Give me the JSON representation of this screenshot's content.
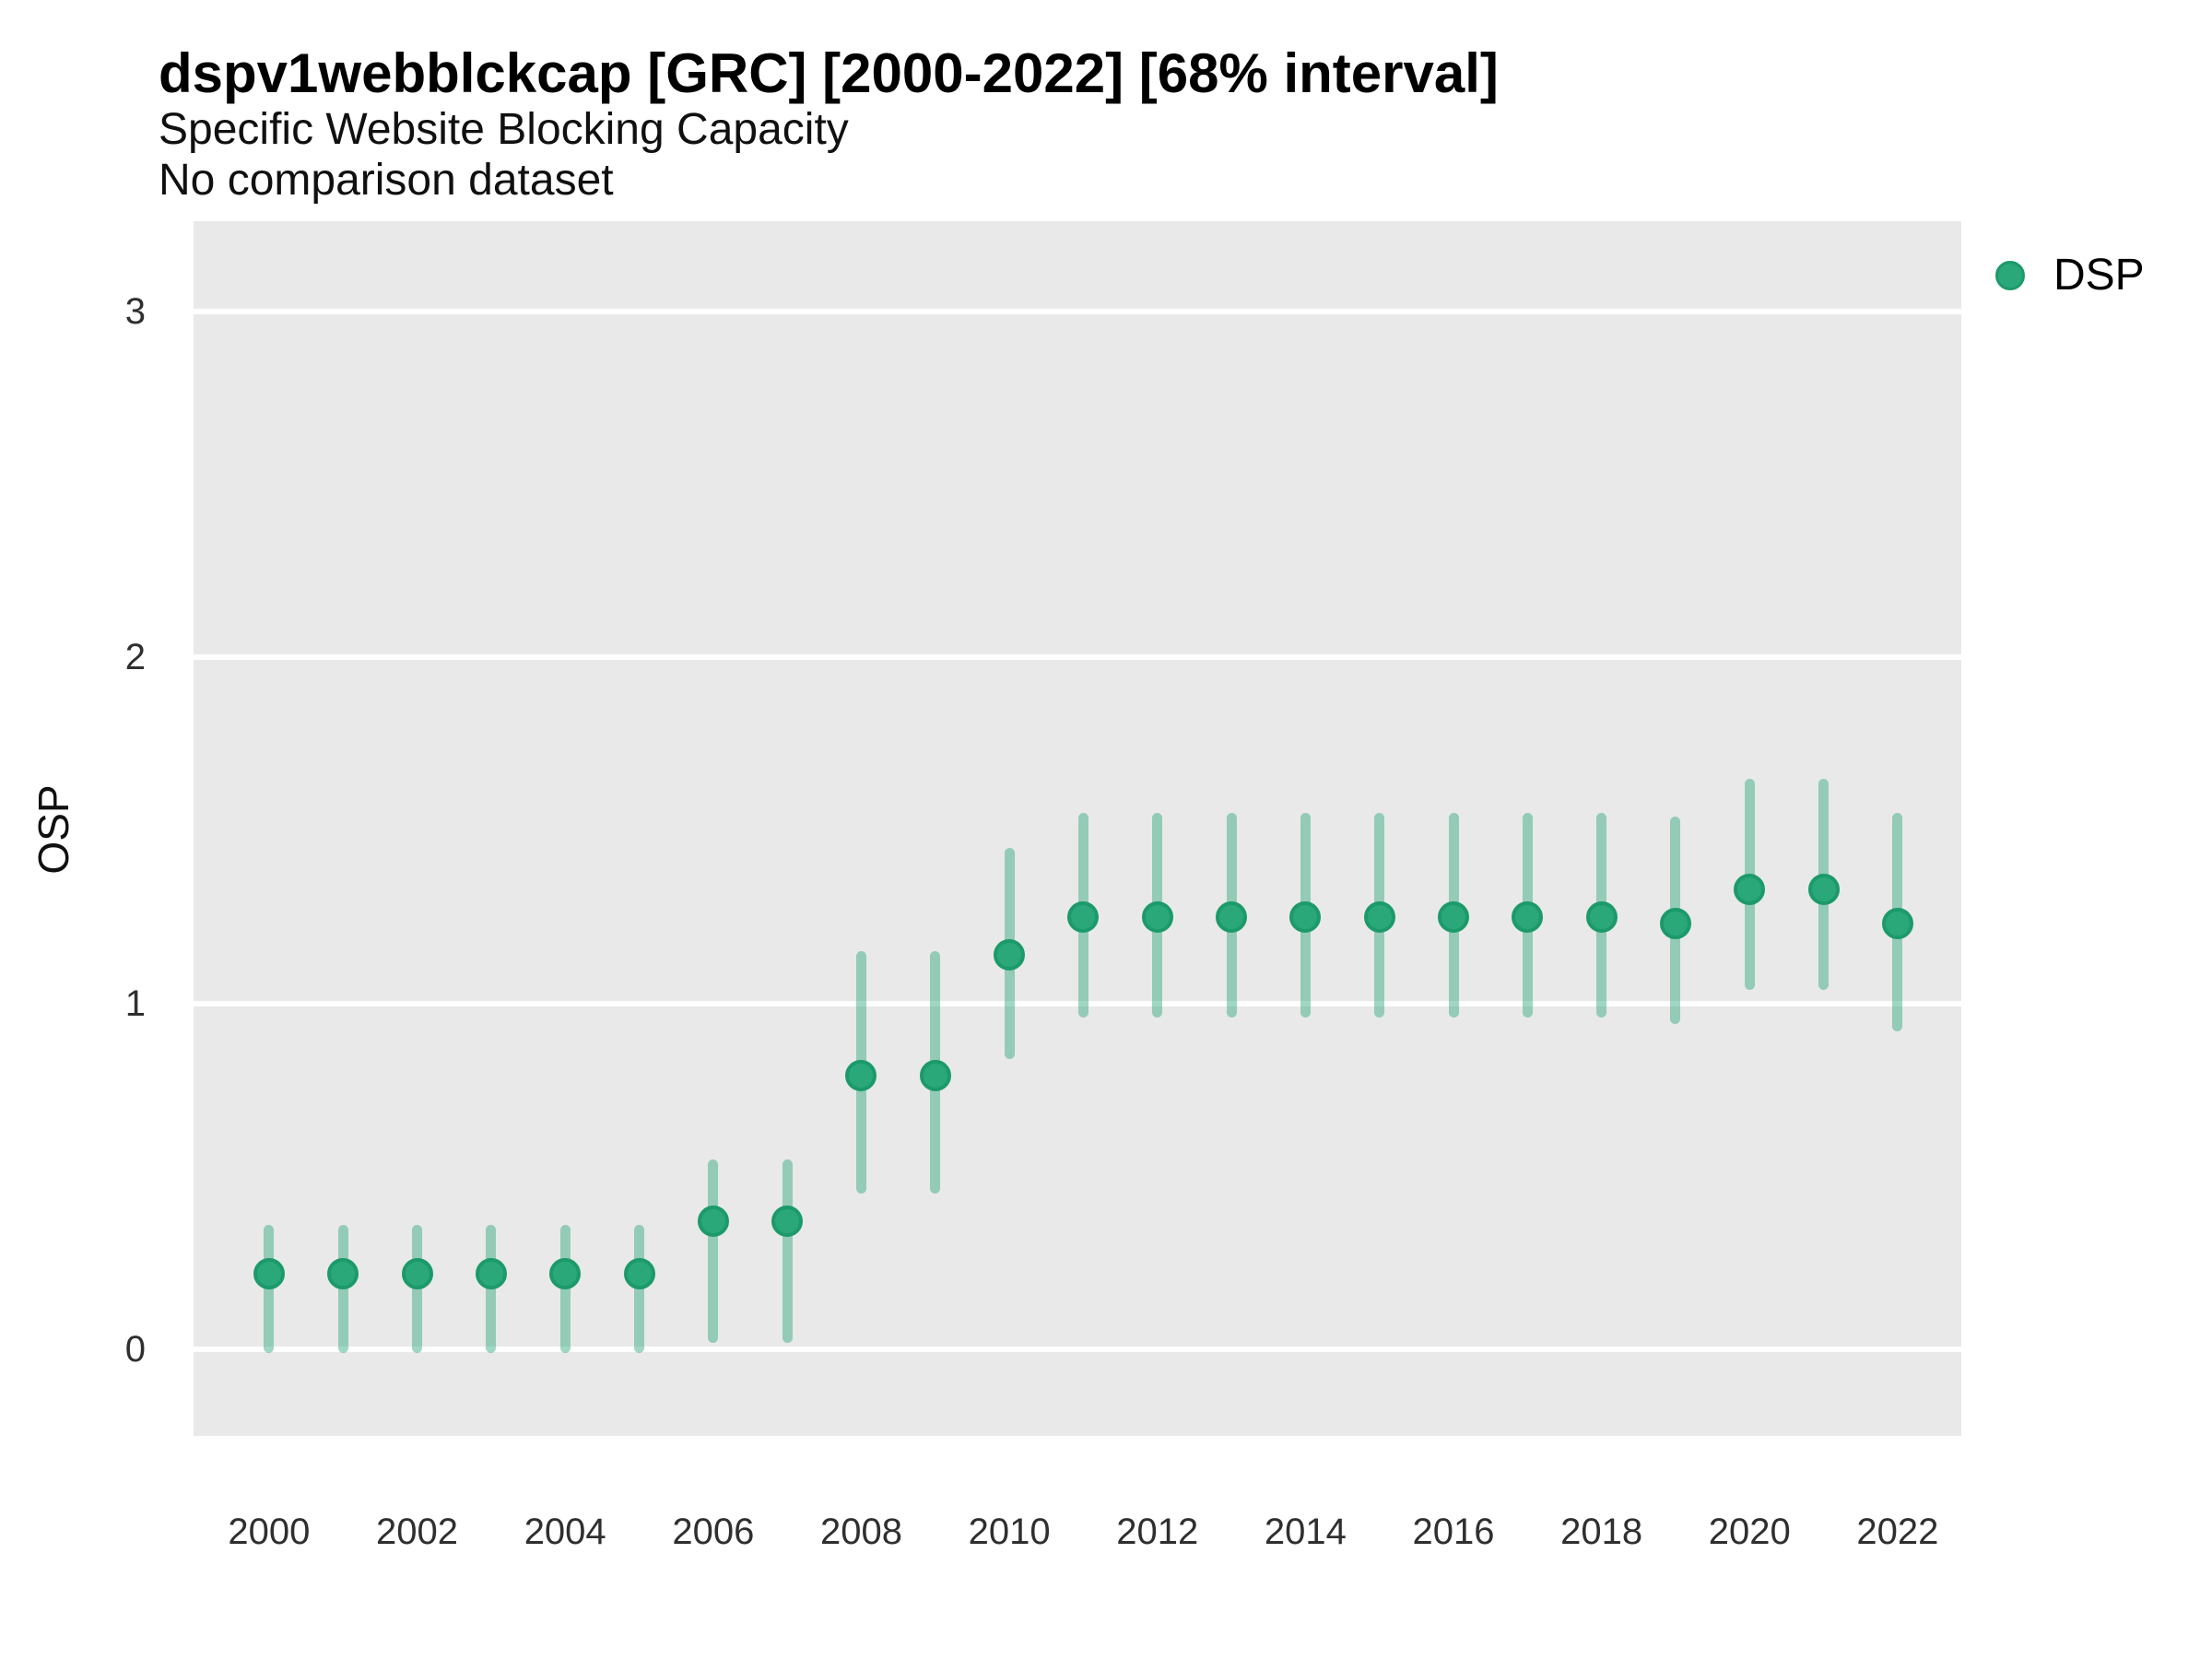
{
  "header": {
    "title": "dspv1webblckcap [GRC] [2000-2022] [68% interval]",
    "subtitle": "Specific Website Blocking Capacity",
    "note": "No comparison dataset"
  },
  "colors": {
    "point_fill": "#2aa87a",
    "point_border": "#1c9a6a",
    "interval_line": "rgba(42,167,122,0.45)",
    "panel_background": "#e9e9e9",
    "gridline": "#ffffff"
  },
  "chart_data": {
    "type": "scatter",
    "subtype": "pointrange",
    "title": "dspv1webblckcap [GRC] [2000-2022] [68% interval]",
    "subtitle": "Specific Website Blocking Capacity",
    "note": "No comparison dataset",
    "xlabel": "",
    "ylabel": "OSP",
    "interval": "68%",
    "grid": "horizontal-major-only",
    "legend_position": "right",
    "x_ticks": [
      2000,
      2002,
      2004,
      2006,
      2008,
      2010,
      2012,
      2014,
      2016,
      2018,
      2020,
      2022
    ],
    "y_ticks": [
      0,
      1,
      2,
      3
    ],
    "xlim": [
      1998.98,
      2022.86
    ],
    "ylim": [
      -0.25,
      3.26
    ],
    "series": [
      {
        "name": "DSP",
        "x": [
          2000,
          2001,
          2002,
          2003,
          2004,
          2005,
          2006,
          2007,
          2008,
          2009,
          2010,
          2011,
          2012,
          2013,
          2014,
          2015,
          2016,
          2017,
          2018,
          2019,
          2020,
          2021,
          2022
        ],
        "y": [
          0.22,
          0.22,
          0.22,
          0.22,
          0.22,
          0.22,
          0.37,
          0.37,
          0.79,
          0.79,
          1.14,
          1.25,
          1.25,
          1.25,
          1.25,
          1.25,
          1.25,
          1.25,
          1.25,
          1.23,
          1.33,
          1.33,
          1.23
        ],
        "y_lo": [
          -0.01,
          -0.01,
          -0.01,
          -0.01,
          -0.01,
          -0.01,
          0.02,
          0.02,
          0.45,
          0.45,
          0.84,
          0.96,
          0.96,
          0.96,
          0.96,
          0.96,
          0.96,
          0.96,
          0.96,
          0.94,
          1.04,
          1.04,
          0.92
        ],
        "y_hi": [
          0.36,
          0.36,
          0.36,
          0.36,
          0.36,
          0.36,
          0.55,
          0.55,
          1.15,
          1.15,
          1.45,
          1.55,
          1.55,
          1.55,
          1.55,
          1.55,
          1.55,
          1.55,
          1.55,
          1.54,
          1.65,
          1.65,
          1.55
        ]
      }
    ]
  }
}
